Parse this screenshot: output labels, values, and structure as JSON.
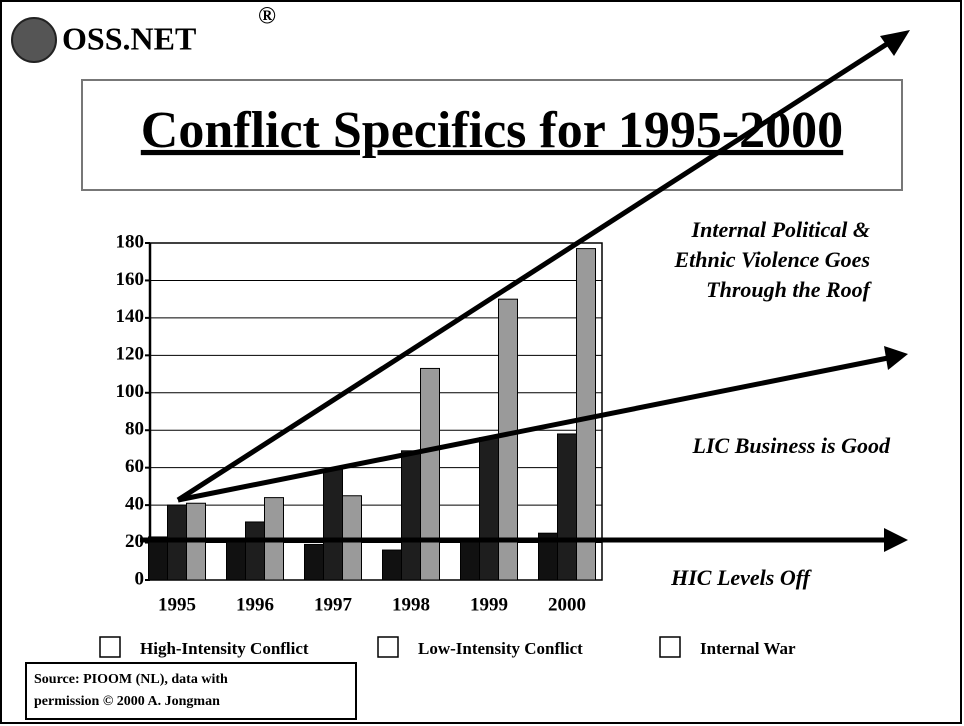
{
  "logo": "OSS.NET",
  "registered": "®",
  "chart_data": {
    "type": "bar",
    "title": "Conflict Specifics for 1995-2000",
    "categories": [
      "1995",
      "1996",
      "1997",
      "1998",
      "1999",
      "2000"
    ],
    "series": [
      {
        "name": "High-Intensity Conflict",
        "color": "#111111",
        "values": [
          23,
          22,
          19,
          16,
          22,
          25
        ]
      },
      {
        "name": "Low-Intensity Conflict",
        "color": "#1e1e1e",
        "values": [
          40,
          31,
          59,
          69,
          76,
          78
        ]
      },
      {
        "name": "Internal War",
        "color": "#9a9a9a",
        "values": [
          41,
          44,
          45,
          113,
          150,
          177
        ]
      }
    ],
    "ylim": [
      0,
      180
    ],
    "yticks": [
      0,
      20,
      40,
      60,
      80,
      100,
      120,
      140,
      160,
      180
    ],
    "grid": true,
    "annotations": [
      [
        "Internal Political &",
        "Ethnic Violence Goes",
        "Through the Roof"
      ],
      [
        "LIC Business is Good"
      ],
      [
        "HIC Levels Off"
      ]
    ],
    "source": [
      "Source: PIOOM (NL), data with",
      "permission © 2000 A. Jongman"
    ]
  }
}
